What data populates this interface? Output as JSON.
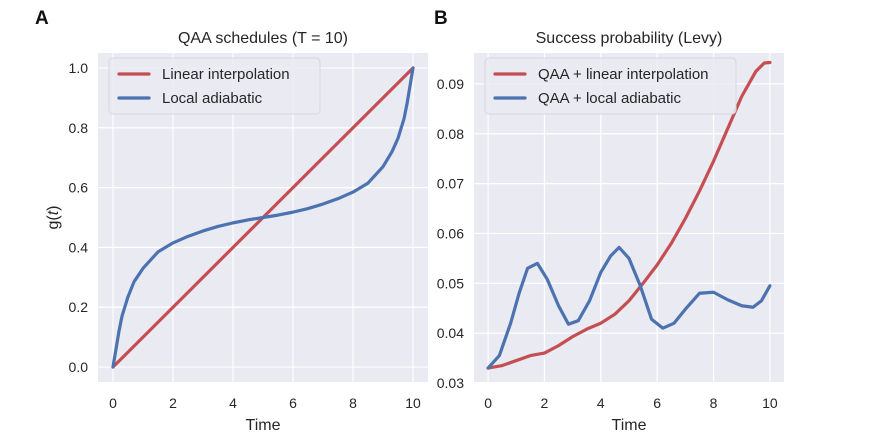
{
  "chart_data": [
    {
      "panel_label": "A",
      "type": "line",
      "title": "QAA schedules (T = 10)",
      "xlabel": "Time",
      "ylabel": {
        "prefix": "g(",
        "var": "t",
        "suffix": ")"
      },
      "xlim": [
        -0.5,
        10.5
      ],
      "ylim": [
        -0.05,
        1.05
      ],
      "xticks": [
        0,
        2,
        4,
        6,
        8,
        10
      ],
      "xtick_labels": [
        "0",
        "2",
        "4",
        "6",
        "8",
        "10"
      ],
      "yticks": [
        0.0,
        0.2,
        0.4,
        0.6,
        0.8,
        1.0
      ],
      "ytick_labels": [
        "0.0",
        "0.2",
        "0.4",
        "0.6",
        "0.8",
        "1.0"
      ],
      "grid": true,
      "legend_position": "top-left",
      "series": [
        {
          "name": "Linear interpolation",
          "color": "#c44e52",
          "x": [
            0,
            10
          ],
          "y": [
            0.0,
            1.0
          ]
        },
        {
          "name": "Local adiabatic",
          "color": "#4c72b0",
          "x": [
            0,
            0.1,
            0.2,
            0.3,
            0.5,
            0.7,
            1.0,
            1.5,
            2.0,
            2.5,
            3.0,
            3.5,
            4.0,
            4.5,
            5.0,
            5.5,
            6.0,
            6.5,
            7.0,
            7.5,
            8.0,
            8.5,
            9.0,
            9.3,
            9.5,
            9.7,
            9.8,
            9.9,
            10.0
          ],
          "y": [
            0.0,
            0.06,
            0.12,
            0.17,
            0.235,
            0.285,
            0.33,
            0.385,
            0.415,
            0.437,
            0.455,
            0.47,
            0.482,
            0.492,
            0.5,
            0.508,
            0.518,
            0.53,
            0.545,
            0.563,
            0.585,
            0.615,
            0.67,
            0.72,
            0.765,
            0.83,
            0.88,
            0.94,
            1.0
          ]
        }
      ]
    },
    {
      "panel_label": "B",
      "type": "line",
      "title": "Success probability (Levy)",
      "xlabel": "Time",
      "ylabel": "",
      "xlim": [
        -0.5,
        10.5
      ],
      "ylim": [
        0.0302,
        0.0962
      ],
      "xticks": [
        0,
        2,
        4,
        6,
        8,
        10
      ],
      "xtick_labels": [
        "0",
        "2",
        "4",
        "6",
        "8",
        "10"
      ],
      "yticks": [
        0.03,
        0.04,
        0.05,
        0.06,
        0.07,
        0.08,
        0.09
      ],
      "ytick_labels": [
        "0.03",
        "0.04",
        "0.05",
        "0.06",
        "0.07",
        "0.08",
        "0.09"
      ],
      "grid": true,
      "legend_position": "top-left",
      "series": [
        {
          "name": "QAA + linear interpolation",
          "color": "#c44e52",
          "x": [
            0,
            0.5,
            1.0,
            1.5,
            2.0,
            2.5,
            3.0,
            3.5,
            4.0,
            4.5,
            5.0,
            5.5,
            6.0,
            6.5,
            7.0,
            7.5,
            8.0,
            8.5,
            9.0,
            9.5,
            9.8,
            10.0
          ],
          "y": [
            0.033,
            0.0335,
            0.0345,
            0.0355,
            0.036,
            0.0375,
            0.0393,
            0.0408,
            0.042,
            0.0438,
            0.0465,
            0.05,
            0.0537,
            0.058,
            0.063,
            0.0685,
            0.0745,
            0.081,
            0.0875,
            0.0925,
            0.0942,
            0.0943
          ]
        },
        {
          "name": "QAA + local adiabatic",
          "color": "#4c72b0",
          "x": [
            0,
            0.4,
            0.8,
            1.1,
            1.4,
            1.75,
            2.1,
            2.5,
            2.85,
            3.2,
            3.6,
            4.0,
            4.35,
            4.65,
            5.0,
            5.4,
            5.8,
            6.2,
            6.6,
            7.0,
            7.5,
            8.0,
            8.5,
            9.0,
            9.4,
            9.7,
            10.0
          ],
          "y": [
            0.033,
            0.0355,
            0.042,
            0.048,
            0.053,
            0.054,
            0.0508,
            0.0455,
            0.0418,
            0.0425,
            0.0465,
            0.0522,
            0.0555,
            0.0572,
            0.055,
            0.0495,
            0.0428,
            0.041,
            0.042,
            0.0448,
            0.048,
            0.0482,
            0.0467,
            0.0455,
            0.0452,
            0.0465,
            0.0495
          ]
        }
      ]
    }
  ]
}
